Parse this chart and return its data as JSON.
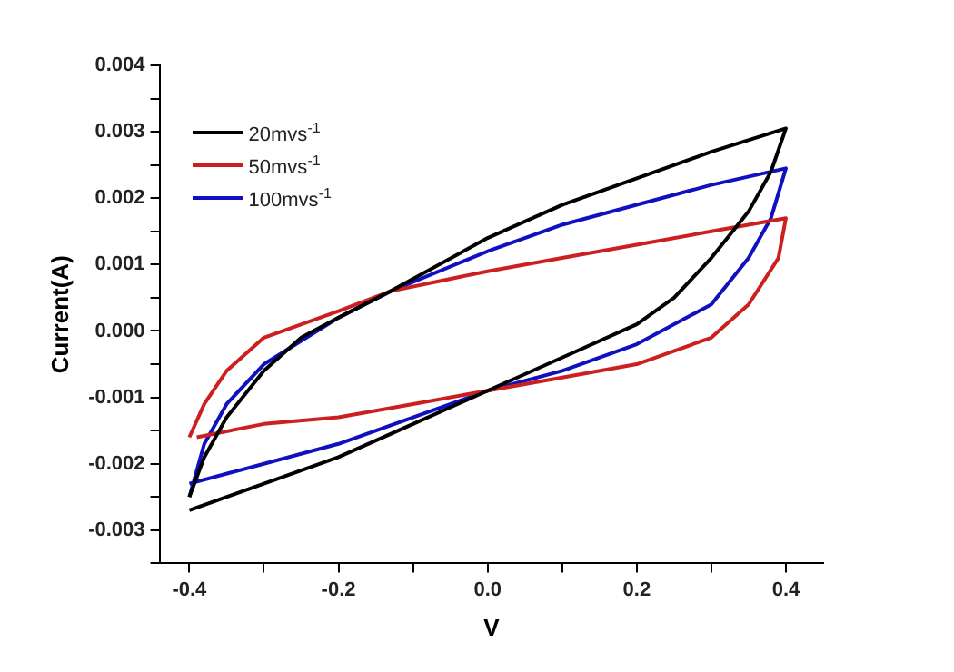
{
  "chart_data": {
    "type": "line",
    "xlabel": "V",
    "ylabel": "Current(A)",
    "xlim": [
      -0.44,
      0.45
    ],
    "ylim": [
      -0.0035,
      0.004
    ],
    "xticks": [
      -0.4,
      {
        "value": -0.3,
        "label": null
      },
      -0.2,
      {
        "value": -0.1,
        "label": null
      },
      {
        "value": 0,
        "label": "0.0"
      },
      {
        "value": 0.1,
        "label": null
      },
      0.2,
      {
        "value": 0.3,
        "label": null
      },
      0.4
    ],
    "yticks": [
      {
        "value": -0.0035,
        "label": null
      },
      -0.003,
      {
        "value": -0.0025,
        "label": null
      },
      -0.002,
      {
        "value": -0.0015,
        "label": null
      },
      -0.001,
      {
        "value": -0.0005,
        "label": null
      },
      {
        "value": 0,
        "label": "0.000"
      },
      {
        "value": 0.0005,
        "label": null
      },
      0.001,
      {
        "value": 0.0015,
        "label": null
      },
      0.002,
      {
        "value": 0.0025,
        "label": null
      },
      0.003,
      {
        "value": 0.0035,
        "label": null
      },
      0.004
    ],
    "legend": "top left",
    "marker": "none",
    "line_style": "solid",
    "series": [
      {
        "name": "20mvs$^{-1}$",
        "color": "#000000",
        "x": [
          -0.4,
          -0.38,
          -0.35,
          -0.3,
          -0.25,
          -0.2,
          -0.13,
          0,
          0.1,
          0.2,
          0.3,
          0.4,
          0.38,
          0.35,
          0.3,
          0.25,
          0.2,
          0.1,
          0,
          -0.1,
          -0.2,
          -0.3,
          -0.4
        ],
        "values": [
          -0.0025,
          -0.0019,
          -0.0013,
          -0.0006,
          -0.0001,
          0.0002,
          0.0006,
          0.0014,
          0.0019,
          0.0023,
          0.0027,
          0.00305,
          0.0024,
          0.0018,
          0.0011,
          0.0005,
          0.0001,
          -0.0004,
          -0.0009,
          -0.0014,
          -0.0019,
          -0.0023,
          -0.0027
        ]
      },
      {
        "name": "50mvs$^{-1}$",
        "color": "#cc2020",
        "x": [
          -0.4,
          -0.38,
          -0.35,
          -0.3,
          -0.2,
          -0.13,
          0,
          0.1,
          0.2,
          0.3,
          0.4,
          0.39,
          0.35,
          0.3,
          0.2,
          0.1,
          0,
          -0.1,
          -0.2,
          -0.3,
          -0.39
        ],
        "values": [
          -0.0016,
          -0.0011,
          -0.0006,
          -0.0001,
          0.0003,
          0.0006,
          0.0009,
          0.0011,
          0.0013,
          0.0015,
          0.0017,
          0.0011,
          0.0004,
          -0.0001,
          -0.0005,
          -0.0007,
          -0.0009,
          -0.0011,
          -0.0013,
          -0.0014,
          -0.0016
        ]
      },
      {
        "name": "100mvs$^{-1}$",
        "color": "#1010c0",
        "x": [
          -0.4,
          -0.38,
          -0.35,
          -0.3,
          -0.2,
          -0.13,
          0,
          0.1,
          0.2,
          0.3,
          0.4,
          0.38,
          0.35,
          0.3,
          0.2,
          0.1,
          0,
          -0.1,
          -0.2,
          -0.3,
          -0.4
        ],
        "values": [
          -0.0025,
          -0.0017,
          -0.0011,
          -0.0005,
          0.0002,
          0.0006,
          0.0012,
          0.0016,
          0.0019,
          0.0022,
          0.00245,
          0.0017,
          0.0011,
          0.0004,
          -0.0002,
          -0.0006,
          -0.0009,
          -0.0013,
          -0.0017,
          -0.002,
          -0.0023
        ]
      }
    ]
  }
}
